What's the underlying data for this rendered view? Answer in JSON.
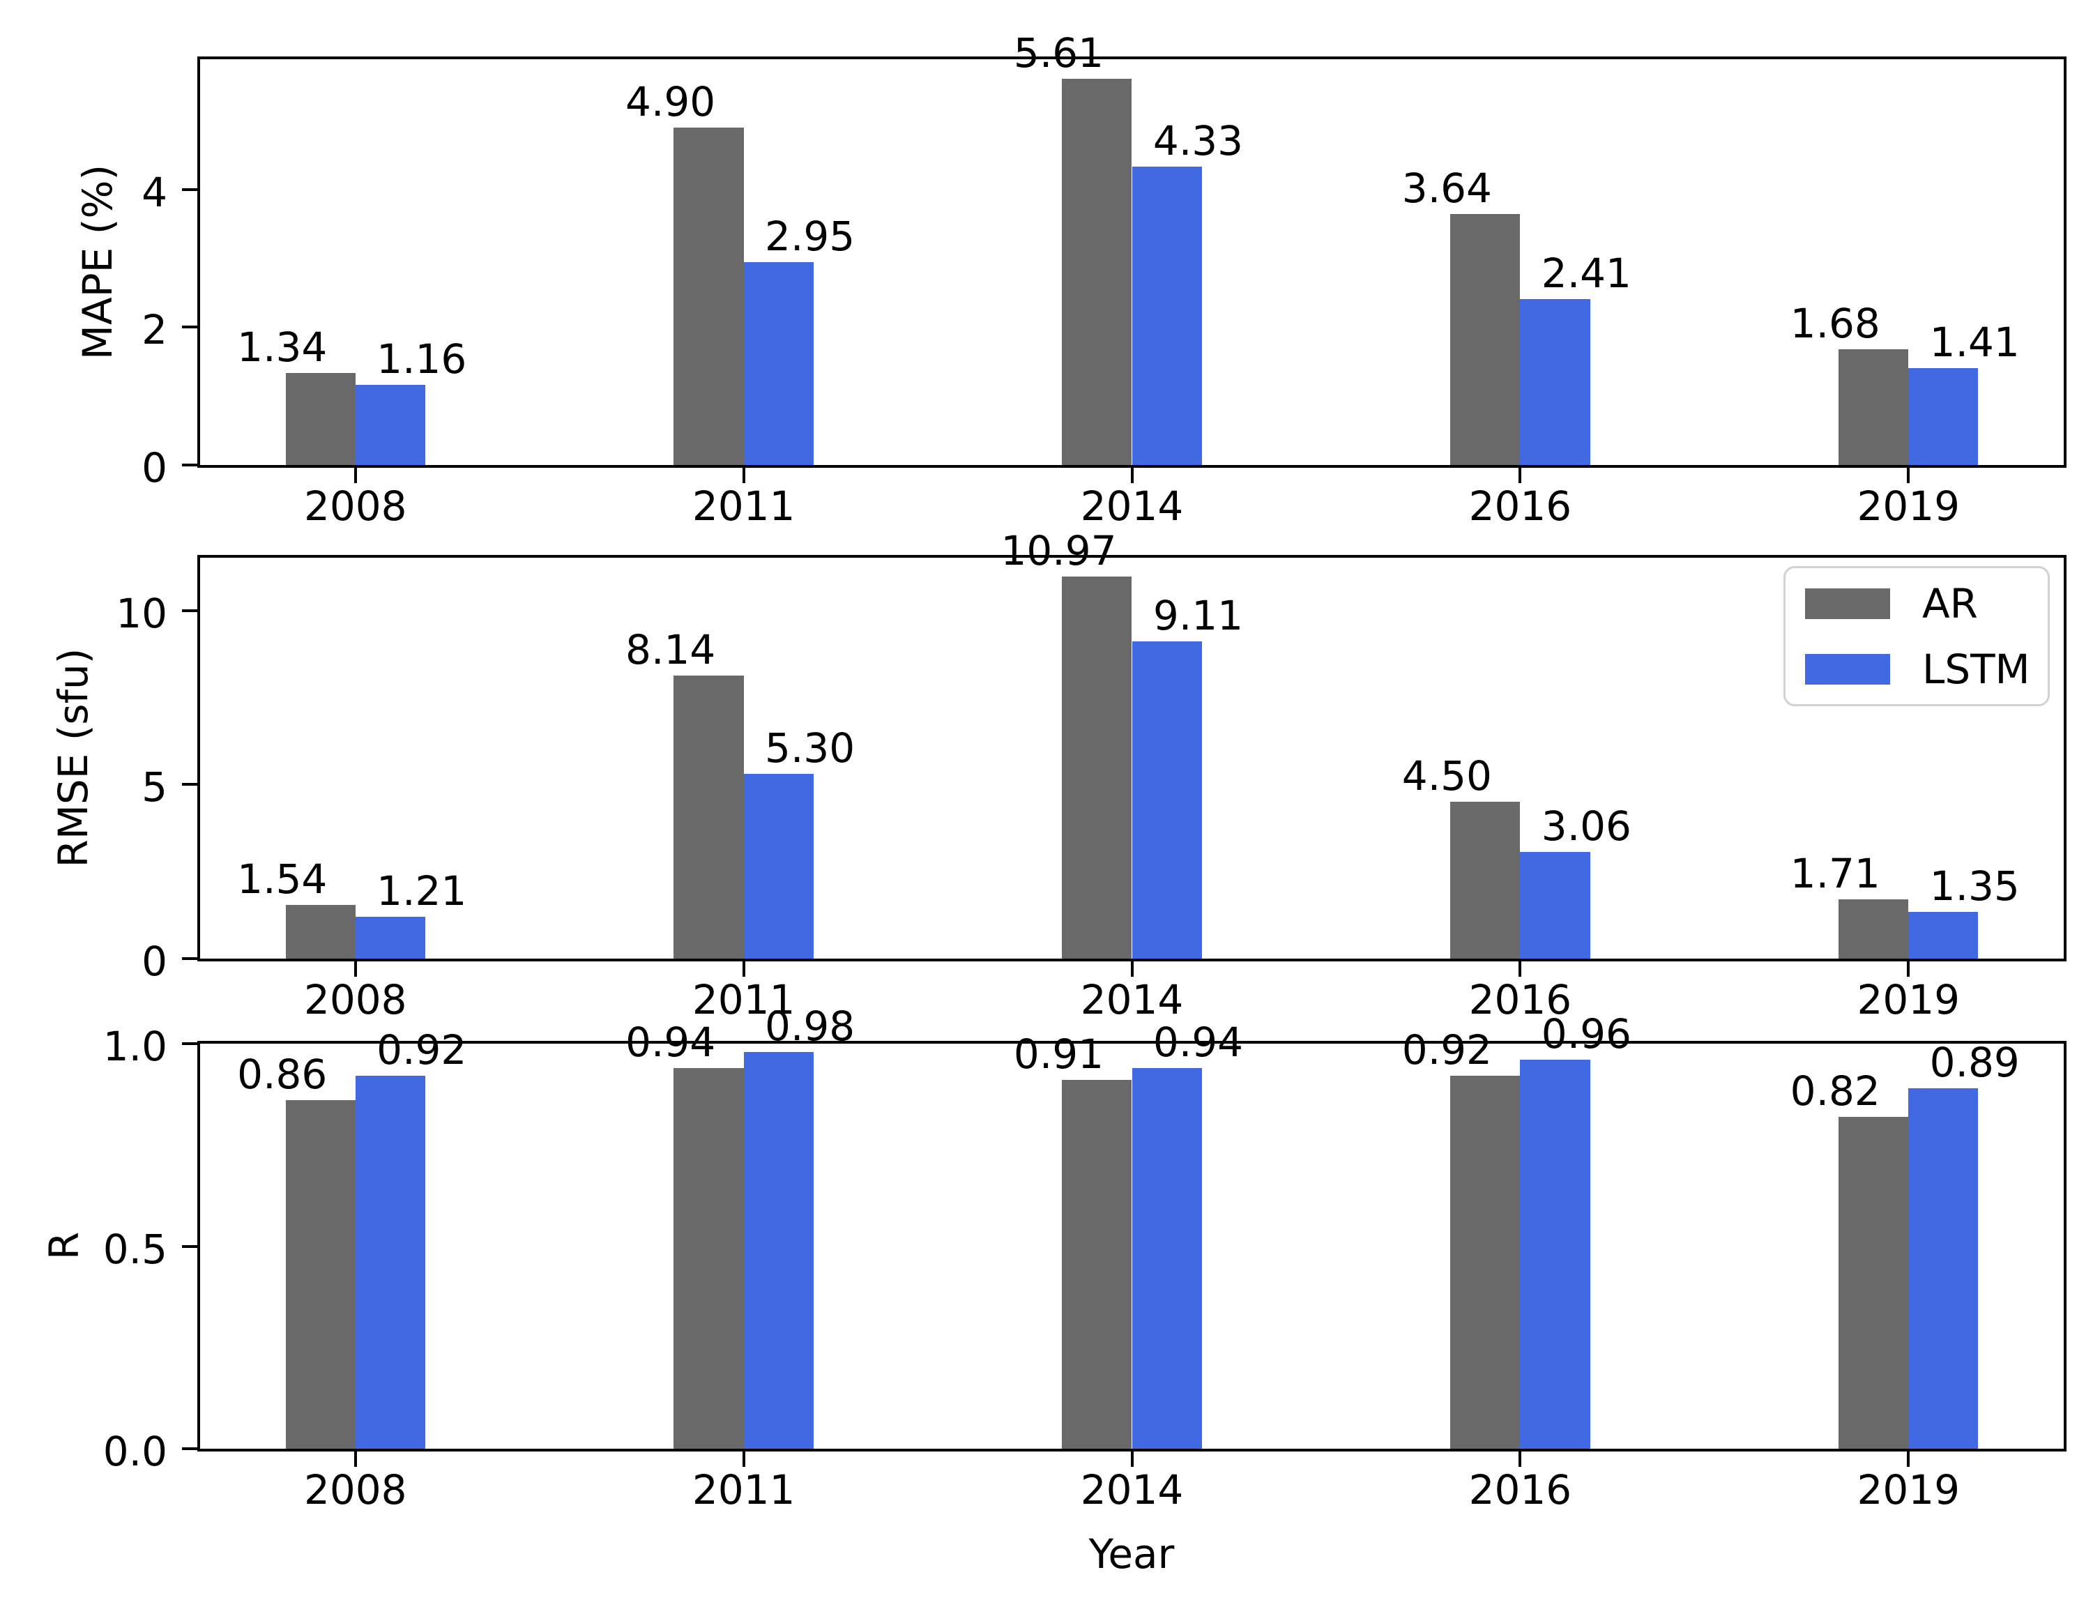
{
  "figure_background": "#ffffff",
  "colors": {
    "ar": "#696969",
    "lstm": "#4169E1",
    "text": "#000000",
    "spine": "#000000",
    "legend_border": "#d2d2d2"
  },
  "xlabel": "Year",
  "categories": [
    "2008",
    "2011",
    "2014",
    "2016",
    "2019"
  ],
  "legend": {
    "position": "upper right of RMSE subplot",
    "items": [
      {
        "label": "AR",
        "color_key": "ar"
      },
      {
        "label": "LSTM",
        "color_key": "lstm"
      }
    ]
  },
  "chart_data": [
    {
      "type": "bar",
      "title": "",
      "ylabel": "MAPE (%)",
      "xlabel": "",
      "categories": [
        "2008",
        "2011",
        "2014",
        "2016",
        "2019"
      ],
      "series": [
        {
          "name": "AR",
          "color": "#696969",
          "values": [
            1.34,
            4.9,
            5.61,
            3.64,
            1.68
          ]
        },
        {
          "name": "LSTM",
          "color": "#4169E1",
          "values": [
            1.16,
            2.95,
            4.33,
            2.41,
            1.41
          ]
        }
      ],
      "value_label_decimals": 2,
      "ylim": [
        0,
        5.89
      ],
      "yticks": [
        {
          "v": 0,
          "label": "0"
        },
        {
          "v": 2,
          "label": "2"
        },
        {
          "v": 4,
          "label": "4"
        }
      ],
      "grid": false,
      "legend_shown": false
    },
    {
      "type": "bar",
      "title": "",
      "ylabel": "RMSE (sfu)",
      "xlabel": "",
      "categories": [
        "2008",
        "2011",
        "2014",
        "2016",
        "2019"
      ],
      "series": [
        {
          "name": "AR",
          "color": "#696969",
          "values": [
            1.54,
            8.14,
            10.97,
            4.5,
            1.71
          ]
        },
        {
          "name": "LSTM",
          "color": "#4169E1",
          "values": [
            1.21,
            5.3,
            9.11,
            3.06,
            1.35
          ]
        }
      ],
      "value_label_decimals": 2,
      "ylim": [
        0,
        11.52
      ],
      "yticks": [
        {
          "v": 0,
          "label": "0"
        },
        {
          "v": 5,
          "label": "5"
        },
        {
          "v": 10,
          "label": "10"
        }
      ],
      "grid": false,
      "legend_shown": true
    },
    {
      "type": "bar",
      "title": "",
      "ylabel": "R",
      "xlabel": "Year",
      "categories": [
        "2008",
        "2011",
        "2014",
        "2016",
        "2019"
      ],
      "series": [
        {
          "name": "AR",
          "color": "#696969",
          "values": [
            0.86,
            0.94,
            0.91,
            0.92,
            0.82
          ]
        },
        {
          "name": "LSTM",
          "color": "#4169E1",
          "values": [
            0.92,
            0.98,
            0.94,
            0.96,
            0.89
          ]
        }
      ],
      "value_label_decimals": 2,
      "ylim": [
        0,
        1.0
      ],
      "yticks": [
        {
          "v": 0.0,
          "label": "0.0"
        },
        {
          "v": 0.5,
          "label": "0.5"
        },
        {
          "v": 1.0,
          "label": "1.0"
        }
      ],
      "grid": false,
      "legend_shown": false
    }
  ]
}
